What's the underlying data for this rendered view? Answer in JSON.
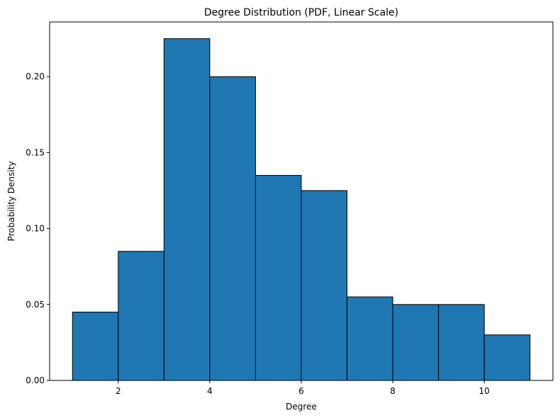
{
  "chart_data": {
    "type": "histogram",
    "title": "Degree Distribution (PDF, Linear Scale)",
    "xlabel": "Degree",
    "ylabel": "Probability Density",
    "bins": [
      1,
      2,
      3,
      4,
      5,
      6,
      7,
      8,
      9,
      10,
      11
    ],
    "values": [
      0.045,
      0.085,
      0.225,
      0.2,
      0.135,
      0.125,
      0.055,
      0.05,
      0.05,
      0.03
    ],
    "color": "#1f77b4",
    "edgecolor": "#000000",
    "xlim": [
      0.5,
      11.5
    ],
    "xticks": [
      2,
      4,
      6,
      8,
      10
    ],
    "ylim": [
      0,
      0.236
    ],
    "yticks": [
      {
        "value": 0,
        "label": "0.00"
      },
      {
        "value": 0.05,
        "label": "0.05"
      },
      {
        "value": 0.1,
        "label": "0.10"
      },
      {
        "value": 0.15,
        "label": "0.15"
      },
      {
        "value": 0.2,
        "label": "0.20"
      }
    ]
  }
}
